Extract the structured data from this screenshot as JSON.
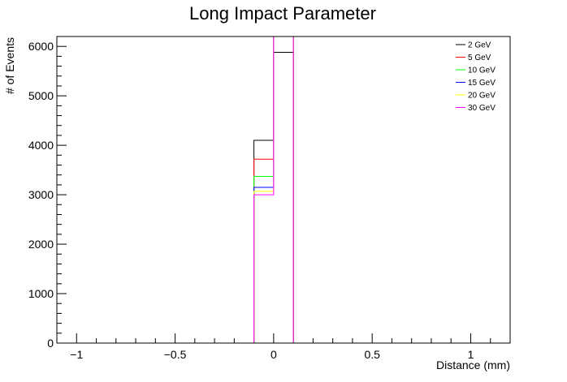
{
  "chart_data": {
    "type": "line",
    "title": "Long Impact Parameter",
    "xlabel": "Distance (mm)",
    "ylabel": "# of Events",
    "xlim": [
      -1.1,
      1.2
    ],
    "ylim": [
      0,
      6200
    ],
    "xticks": [
      -1,
      -0.5,
      0,
      0.5,
      1
    ],
    "xtick_labels": [
      "−1",
      "−0.5",
      "0",
      "0.5",
      "1"
    ],
    "yticks": [
      0,
      1000,
      2000,
      3000,
      4000,
      5000,
      6000
    ],
    "ytick_labels": [
      "0",
      "1000",
      "2000",
      "3000",
      "4000",
      "5000",
      "6000"
    ],
    "grid": false,
    "legend_position": "top-right",
    "series": [
      {
        "name": "2 GeV",
        "color": "#000000",
        "values": [
          4100,
          5880
        ]
      },
      {
        "name": "5 GeV",
        "color": "#ff0000",
        "values": [
          3720,
          6200
        ]
      },
      {
        "name": "10 GeV",
        "color": "#00ff00",
        "values": [
          3370,
          6200
        ]
      },
      {
        "name": "15 GeV",
        "color": "#0000ff",
        "values": [
          3150,
          6200
        ]
      },
      {
        "name": "20 GeV",
        "color": "#ffff00",
        "values": [
          3070,
          6200
        ]
      },
      {
        "name": "30 GeV",
        "color": "#ff00ff",
        "values": [
          3000,
          6200
        ]
      }
    ],
    "bin_edges": [
      -0.1,
      0,
      0.1
    ]
  }
}
